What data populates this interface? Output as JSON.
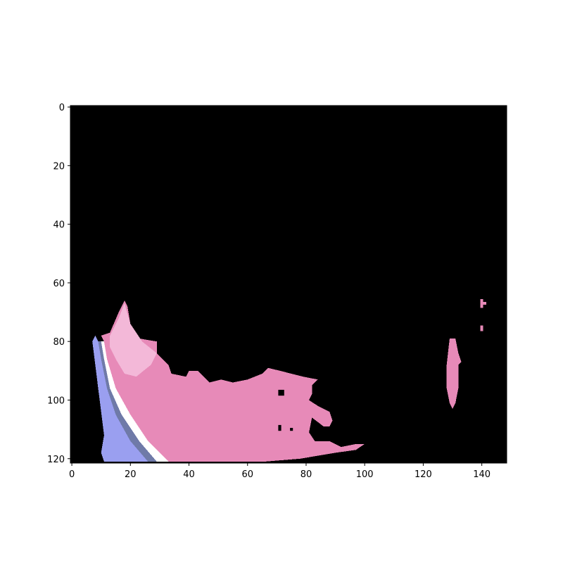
{
  "chart_data": {
    "type": "heatmap",
    "title": "",
    "xlabel": "",
    "ylabel": "",
    "image_shape": [
      122,
      149
    ],
    "background_color": "#000000",
    "xlim": [
      -0.5,
      148.5
    ],
    "ylim": [
      121.5,
      -0.5
    ],
    "x_ticks": [
      0,
      20,
      40,
      60,
      80,
      100,
      120,
      140
    ],
    "y_ticks": [
      0,
      20,
      40,
      60,
      80,
      100,
      120
    ],
    "x_tick_labels": [
      "0",
      "20",
      "40",
      "60",
      "80",
      "100",
      "120",
      "140"
    ],
    "y_tick_labels": [
      "0",
      "20",
      "40",
      "60",
      "80",
      "100",
      "120"
    ],
    "grid": false,
    "colors": {
      "pink": "#e78ab8",
      "light_pink": "#f3b8d8",
      "dark_pink": "#d97aa8",
      "white": "#ffffff",
      "blue": "#9a9ff0",
      "slate": "#6f7aa8"
    },
    "regions": [
      {
        "name": "blue-stripe",
        "color": "blue",
        "polygon": [
          [
            8,
            78
          ],
          [
            7,
            80
          ],
          [
            8,
            88
          ],
          [
            9,
            96
          ],
          [
            10,
            104
          ],
          [
            11,
            112
          ],
          [
            10,
            118
          ],
          [
            11,
            121
          ],
          [
            26,
            121
          ],
          [
            20,
            114
          ],
          [
            15,
            105
          ],
          [
            12,
            96
          ],
          [
            10,
            86
          ],
          [
            9,
            80
          ]
        ]
      },
      {
        "name": "slate-edge",
        "color": "slate",
        "polygon": [
          [
            9,
            80
          ],
          [
            10,
            86
          ],
          [
            12,
            96
          ],
          [
            15,
            105
          ],
          [
            20,
            114
          ],
          [
            26,
            121
          ],
          [
            29,
            121
          ],
          [
            23,
            114
          ],
          [
            17,
            105
          ],
          [
            13,
            96
          ],
          [
            11,
            86
          ],
          [
            10,
            80
          ]
        ]
      },
      {
        "name": "white-stripe",
        "color": "white",
        "polygon": [
          [
            10,
            80
          ],
          [
            11,
            86
          ],
          [
            13,
            96
          ],
          [
            17,
            105
          ],
          [
            23,
            114
          ],
          [
            29,
            121
          ],
          [
            33,
            121
          ],
          [
            26,
            114
          ],
          [
            20,
            105
          ],
          [
            15,
            96
          ],
          [
            12,
            86
          ],
          [
            11,
            80
          ]
        ]
      },
      {
        "name": "pink-main-blob",
        "color": "pink",
        "polygon": [
          [
            10,
            78
          ],
          [
            13,
            77
          ],
          [
            16,
            70
          ],
          [
            18,
            66
          ],
          [
            19,
            68
          ],
          [
            20,
            74
          ],
          [
            23,
            79
          ],
          [
            29,
            80
          ],
          [
            29,
            84
          ],
          [
            33,
            88
          ],
          [
            34,
            91
          ],
          [
            39,
            92
          ],
          [
            40,
            90
          ],
          [
            43,
            90
          ],
          [
            47,
            94
          ],
          [
            51,
            93
          ],
          [
            55,
            94
          ],
          [
            60,
            93
          ],
          [
            65,
            91
          ],
          [
            67,
            89
          ],
          [
            71,
            90
          ],
          [
            75,
            91
          ],
          [
            79,
            92
          ],
          [
            84,
            93
          ],
          [
            82,
            95
          ],
          [
            82,
            98
          ],
          [
            81,
            100
          ],
          [
            84,
            102
          ],
          [
            88,
            104
          ],
          [
            89,
            107
          ],
          [
            88,
            109
          ],
          [
            86,
            109
          ],
          [
            82,
            106
          ],
          [
            81,
            111
          ],
          [
            83,
            114
          ],
          [
            88,
            114
          ],
          [
            92,
            116
          ],
          [
            97,
            115
          ],
          [
            100,
            115
          ],
          [
            97,
            117
          ],
          [
            90,
            118
          ],
          [
            84,
            119
          ],
          [
            78,
            120
          ],
          [
            66,
            121
          ],
          [
            33,
            121
          ],
          [
            26,
            114
          ],
          [
            20,
            105
          ],
          [
            15,
            96
          ],
          [
            12,
            86
          ],
          [
            11,
            80
          ]
        ]
      },
      {
        "name": "light-pink-highlight",
        "color": "light_pink",
        "polygon": [
          [
            13,
            78
          ],
          [
            16,
            72
          ],
          [
            18,
            67
          ],
          [
            20,
            74
          ],
          [
            24,
            80
          ],
          [
            29,
            84
          ],
          [
            27,
            88
          ],
          [
            22,
            92
          ],
          [
            18,
            91
          ],
          [
            15,
            86
          ],
          [
            13,
            82
          ]
        ]
      },
      {
        "name": "pink-small-blob",
        "color": "pink",
        "polygon": [
          [
            129,
            79
          ],
          [
            131,
            79
          ],
          [
            132,
            84
          ],
          [
            133,
            87
          ],
          [
            132,
            88
          ],
          [
            132,
            96
          ],
          [
            131,
            101
          ],
          [
            130,
            103
          ],
          [
            129,
            101
          ],
          [
            128,
            96
          ],
          [
            128,
            88
          ]
        ]
      },
      {
        "name": "pink-speck-1",
        "color": "pink",
        "polygon": [
          [
            139.5,
            65.5
          ],
          [
            140.5,
            65.5
          ],
          [
            140.5,
            66.5
          ],
          [
            141.5,
            66.5
          ],
          [
            141.5,
            67.5
          ],
          [
            140.5,
            67.5
          ],
          [
            140.5,
            68.5
          ],
          [
            139.5,
            68.5
          ]
        ]
      },
      {
        "name": "pink-speck-2",
        "color": "pink",
        "polygon": [
          [
            139.5,
            74.5
          ],
          [
            140.5,
            74.5
          ],
          [
            140.5,
            76.5
          ],
          [
            139.5,
            76.5
          ]
        ]
      }
    ],
    "holes": [
      {
        "name": "hole-1",
        "polygon": [
          [
            70.5,
            96.5
          ],
          [
            72.5,
            96.5
          ],
          [
            72.5,
            98.5
          ],
          [
            70.5,
            98.5
          ]
        ]
      },
      {
        "name": "hole-2",
        "polygon": [
          [
            70.5,
            108.5
          ],
          [
            71.5,
            108.5
          ],
          [
            71.5,
            110.5
          ],
          [
            70.5,
            110.5
          ]
        ]
      },
      {
        "name": "hole-3",
        "polygon": [
          [
            74.5,
            109.5
          ],
          [
            75.5,
            109.5
          ],
          [
            75.5,
            110.5
          ],
          [
            74.5,
            110.5
          ]
        ]
      }
    ]
  }
}
